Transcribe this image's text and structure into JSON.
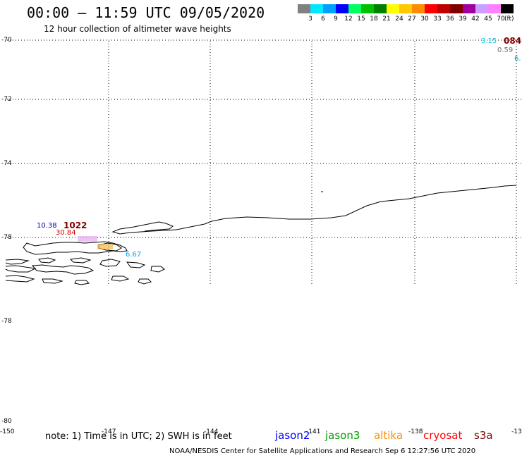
{
  "header": {
    "title": "00:00 – 11:59 UTC 09/05/2020",
    "subtitle": "12 hour collection of altimeter wave heights"
  },
  "legend": {
    "unit": "(ft)",
    "bins": [
      {
        "label": "3",
        "color": "#808080"
      },
      {
        "label": "6",
        "color": "#00e8ff"
      },
      {
        "label": "9",
        "color": "#00a0ff"
      },
      {
        "label": "12",
        "color": "#0000ff"
      },
      {
        "label": "15",
        "color": "#00ff60"
      },
      {
        "label": "18",
        "color": "#00c000"
      },
      {
        "label": "21",
        "color": "#008000"
      },
      {
        "label": "24",
        "color": "#ffff00"
      },
      {
        "label": "27",
        "color": "#ffc800"
      },
      {
        "label": "30",
        "color": "#ff8c00"
      },
      {
        "label": "33",
        "color": "#ff0000"
      },
      {
        "label": "36",
        "color": "#c00000"
      },
      {
        "label": "39",
        "color": "#800000"
      },
      {
        "label": "42",
        "color": "#a000a0"
      },
      {
        "label": "45",
        "color": "#c8a0ff"
      },
      {
        "label": "70",
        "color": "#ff80ff"
      },
      {
        "label": "",
        "color": "#000000"
      }
    ]
  },
  "axes": {
    "lat_labels": [
      "-70",
      "-72",
      "-74",
      "-78",
      "-78",
      "-80"
    ],
    "lon_labels": [
      "-150",
      "-147",
      "-144",
      "-141",
      "-138",
      "-13"
    ]
  },
  "observations": [
    {
      "text": "3.15",
      "color": "#00c8e0"
    },
    {
      "text": "084",
      "color": "#800000"
    },
    {
      "text": "0.59",
      "color": "#707070"
    },
    {
      "text": "6.",
      "color": "#00a0c8"
    },
    {
      "text": "10.38",
      "color": "#0000b0"
    },
    {
      "text": "1022",
      "color": "#800000"
    },
    {
      "text": "30.84",
      "color": "#d00000"
    },
    {
      "text": "6.67",
      "color": "#00a0ff"
    }
  ],
  "footer": {
    "note": "note: 1) Time is in UTC; 2) SWH is in feet",
    "satellites": [
      {
        "name": "jason2",
        "color": "#0000ff"
      },
      {
        "name": "jason3",
        "color": "#00a000"
      },
      {
        "name": "altika",
        "color": "#ff8c00"
      },
      {
        "name": "cryosat",
        "color": "#ff0000"
      },
      {
        "name": "s3a",
        "color": "#800000"
      }
    ],
    "credit": "NOAA/NESDIS Center for Satellite Applications and Research   Sep  6 12:27:56 UTC 2020"
  }
}
